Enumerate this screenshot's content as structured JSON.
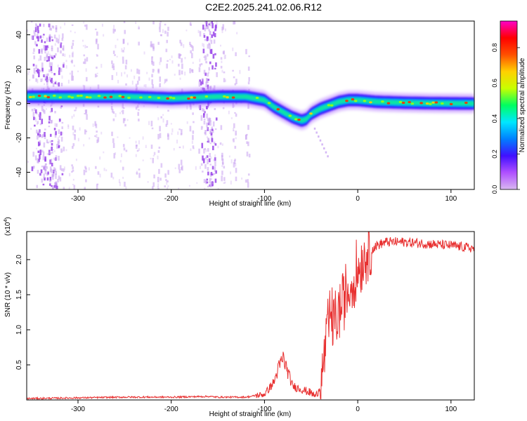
{
  "page": {
    "title": "C2E2.2025.241.02.06.R12"
  },
  "chart_data": [
    {
      "type": "heatmap",
      "title": "C2E2.2025.241.02.06.R12",
      "xlabel": "Height of straight line (km)",
      "ylabel": "Frequency (Hz)",
      "xlim": [
        -355,
        125
      ],
      "ylim": [
        -50,
        48
      ],
      "x_ticks": [
        -300,
        -200,
        -100,
        0,
        100
      ],
      "y_ticks": [
        -40,
        -20,
        0,
        20,
        40
      ],
      "colorbar": {
        "label": "Normalized spectral amplitude",
        "range": [
          0,
          0.95
        ],
        "ticks": [
          0.0,
          0.2,
          0.4,
          0.6,
          0.8
        ],
        "colors": [
          "#d8b8f0",
          "#b050ff",
          "#4010ff",
          "#0080ff",
          "#00e8ff",
          "#00ff60",
          "#c8ff00",
          "#ffd000",
          "#ff5000",
          "#ff0000",
          "#ff00c8"
        ]
      },
      "frequency_ridge": {
        "x": [
          -355,
          -300,
          -250,
          -200,
          -150,
          -120,
          -100,
          -90,
          -80,
          -70,
          -60,
          -55,
          -50,
          -40,
          -30,
          -20,
          -10,
          0,
          20,
          50,
          80,
          125
        ],
        "y": [
          4,
          4,
          4,
          3,
          4,
          4,
          2,
          -2,
          -5,
          -8,
          -10,
          -9,
          -6,
          -3,
          -1,
          1,
          2,
          2,
          1,
          0.5,
          0.2,
          0
        ]
      }
    },
    {
      "type": "line",
      "xlabel": "Height of straight line (km)",
      "ylabel": "SNR (10 * v/v)",
      "scale_label": "(x10",
      "scale_exponent": "4",
      "xlim": [
        -355,
        125
      ],
      "ylim": [
        0,
        2.4
      ],
      "x_ticks": [
        -300,
        -200,
        -100,
        0,
        100
      ],
      "y_ticks": [
        0.5,
        1.0,
        1.5,
        2.0
      ],
      "y_tick_labels": [
        "0.5",
        "1.0",
        "1.5",
        "2.0"
      ],
      "line_color": "#e83030",
      "series": [
        {
          "x": [
            -355,
            -300,
            -250,
            -200,
            -160,
            -150,
            -120,
            -100,
            -90,
            -85,
            -80,
            -75,
            -70,
            -60,
            -50,
            -45,
            -40,
            -35,
            -30,
            -25,
            -20,
            -15,
            -10,
            -5,
            0,
            5,
            10,
            20,
            30,
            50,
            80,
            100,
            125
          ],
          "y": [
            0.02,
            0.03,
            0.04,
            0.04,
            0.05,
            0.04,
            0.04,
            0.08,
            0.25,
            0.45,
            0.6,
            0.4,
            0.2,
            0.15,
            0.1,
            0.05,
            0.2,
            0.7,
            1.2,
            1.1,
            1.25,
            1.45,
            1.55,
            1.7,
            1.85,
            2.0,
            2.1,
            2.2,
            2.25,
            2.25,
            2.22,
            2.2,
            2.16
          ]
        }
      ]
    }
  ]
}
